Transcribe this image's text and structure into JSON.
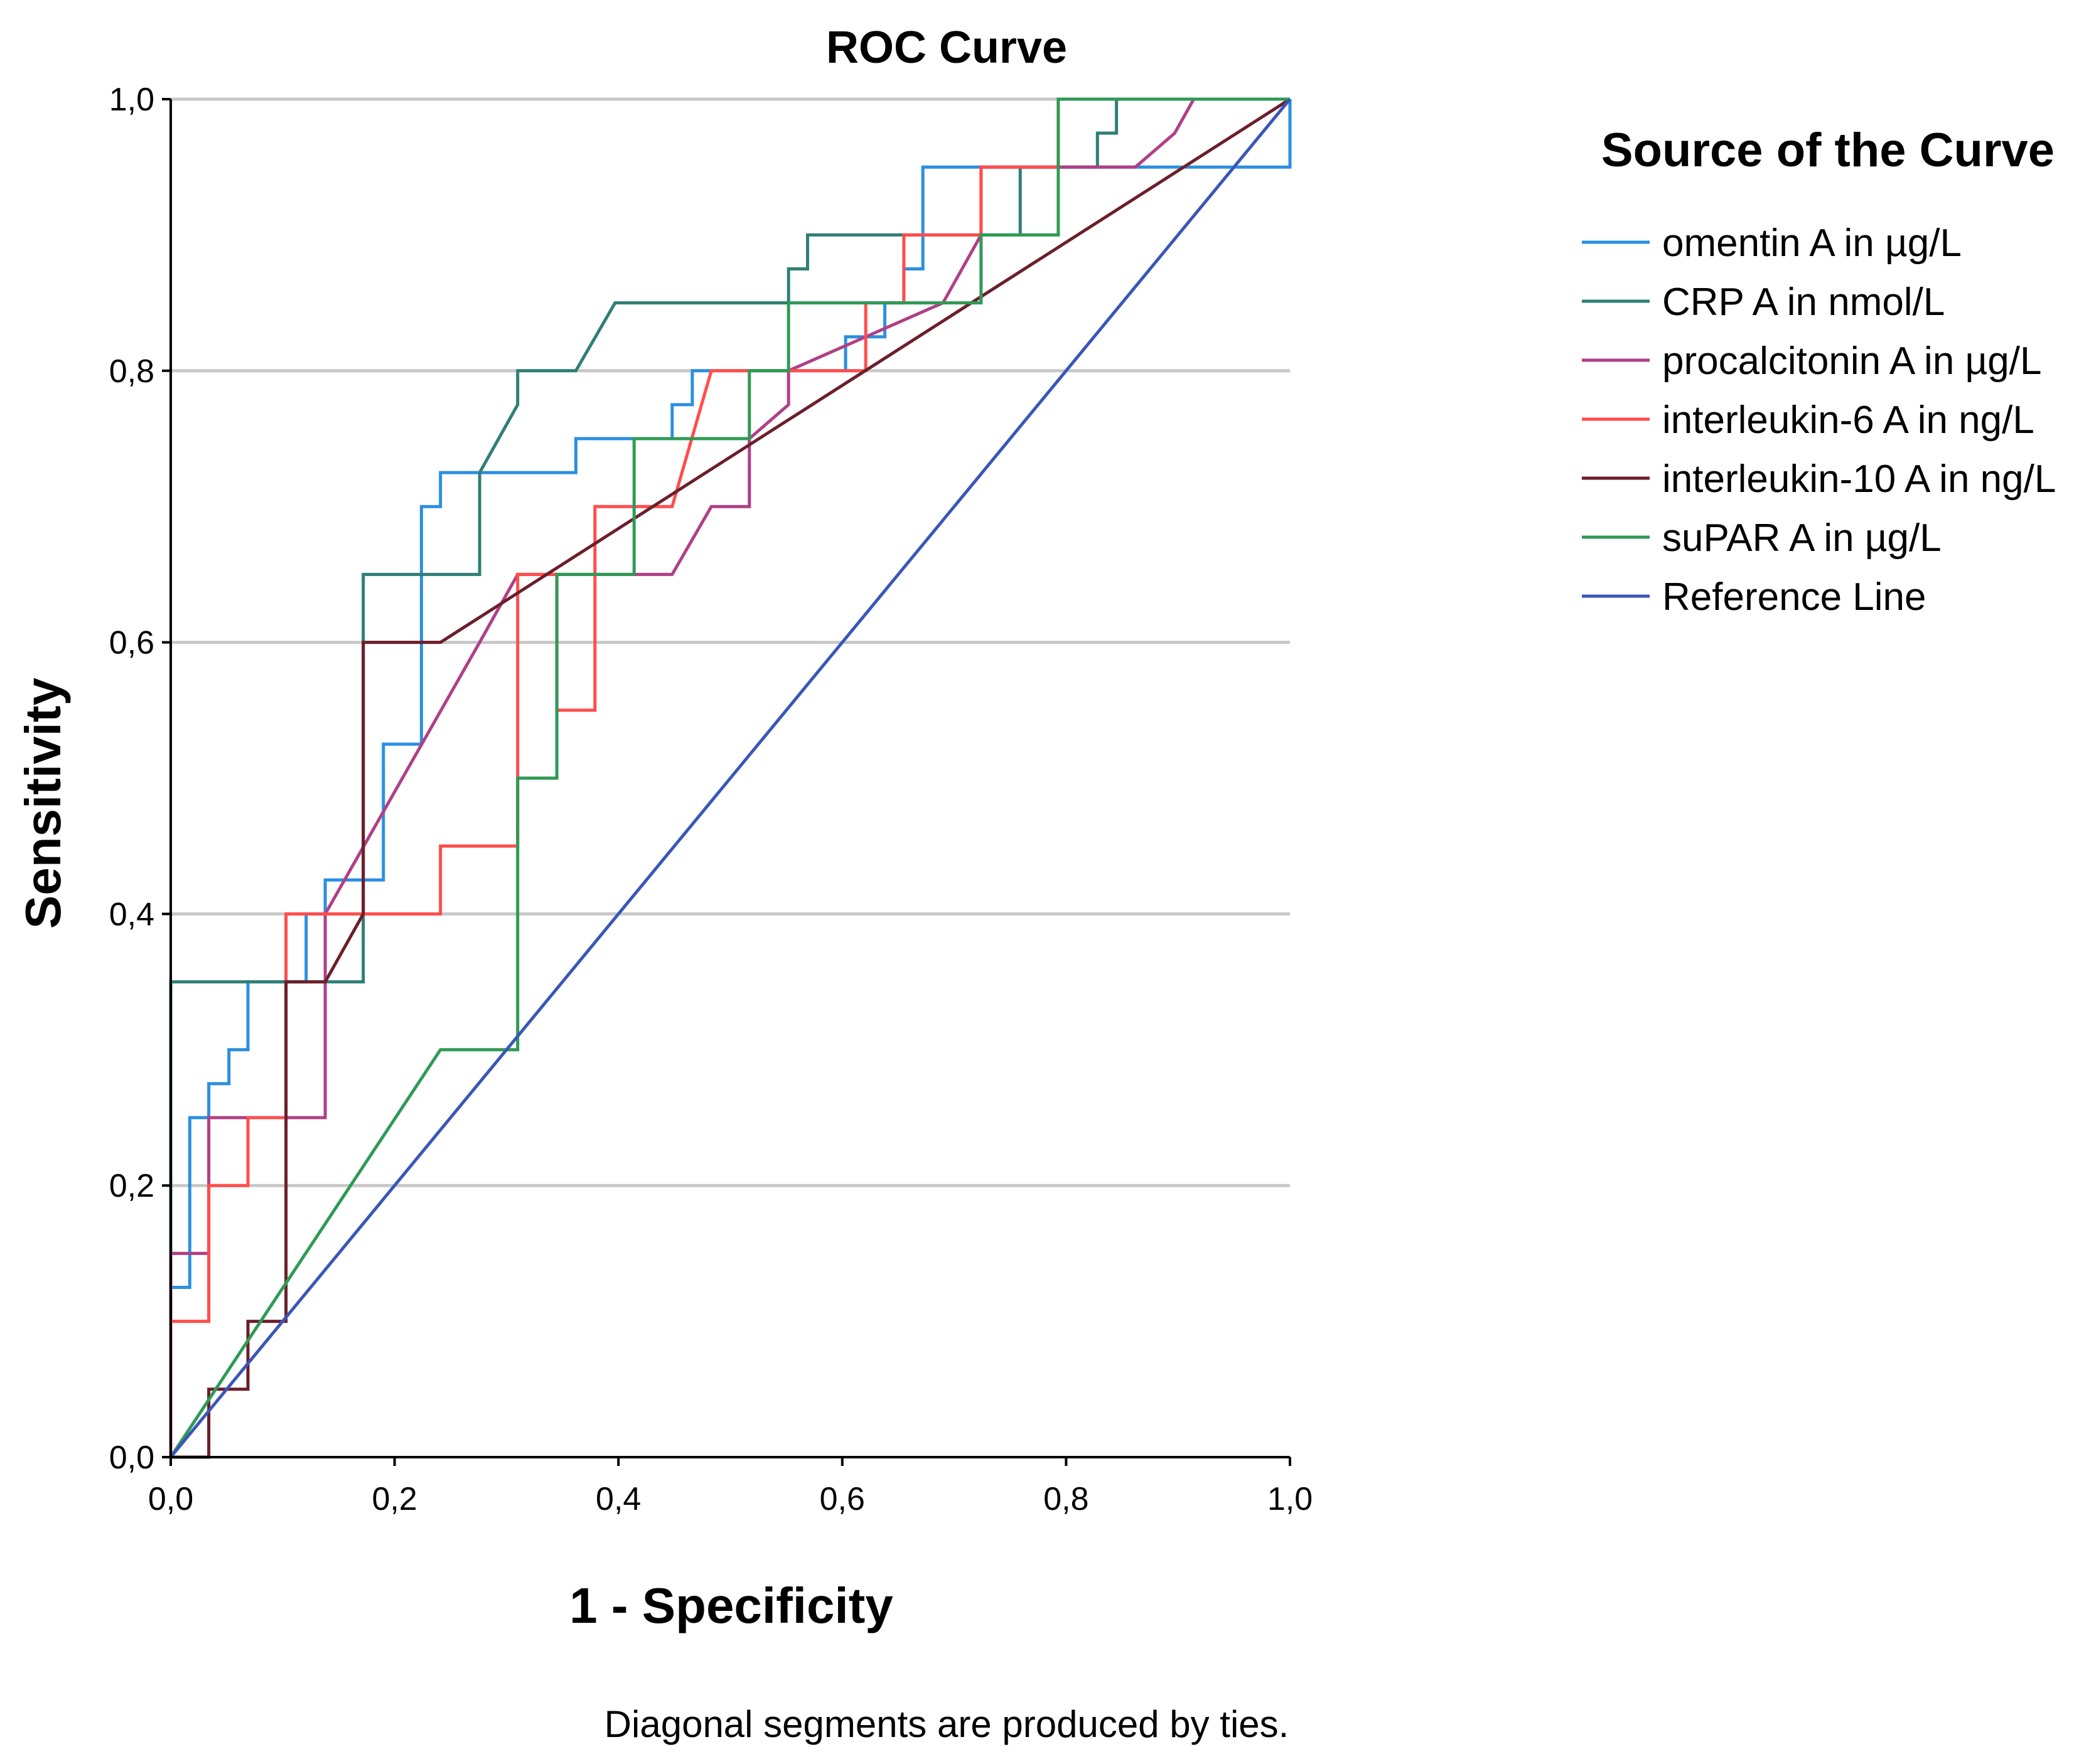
{
  "chart_data": {
    "type": "line",
    "title": "ROC Curve",
    "xlabel": "1 - Specificity",
    "ylabel": "Sensitivity",
    "footnote": "Diagonal segments are produced by ties.",
    "legend_title": "Source of the Curve",
    "legend_position": "right",
    "xlim": [
      0,
      1
    ],
    "ylim": [
      0,
      1
    ],
    "xticks": [
      0,
      0.2,
      0.4,
      0.6,
      0.8,
      1.0
    ],
    "yticks": [
      0,
      0.2,
      0.4,
      0.6,
      0.8,
      1.0
    ],
    "xtick_labels": [
      "0,0",
      "0,2",
      "0,4",
      "0,6",
      "0,8",
      "1,0"
    ],
    "ytick_labels": [
      "0,0",
      "0,2",
      "0,4",
      "0,6",
      "0,8",
      "1,0"
    ],
    "grid": "horizontal",
    "series": [
      {
        "name": "omentin A in µg/L",
        "color": "#2b8fe0",
        "x": [
          0,
          0,
          0.017,
          0.017,
          0.034,
          0.034,
          0.052,
          0.052,
          0.069,
          0.069,
          0.121,
          0.121,
          0.138,
          0.138,
          0.19,
          0.19,
          0.224,
          0.224,
          0.241,
          0.241,
          0.259,
          0.259,
          0.362,
          0.362,
          0.448,
          0.448,
          0.466,
          0.466,
          0.603,
          0.603,
          0.638,
          0.638,
          0.655,
          0.655,
          0.672,
          0.672,
          0.724,
          0.724,
          1.0,
          1.0
        ],
        "y": [
          0,
          0.125,
          0.125,
          0.25,
          0.25,
          0.275,
          0.275,
          0.3,
          0.3,
          0.35,
          0.35,
          0.4,
          0.4,
          0.425,
          0.425,
          0.525,
          0.525,
          0.7,
          0.7,
          0.725,
          0.725,
          0.725,
          0.725,
          0.75,
          0.75,
          0.775,
          0.775,
          0.8,
          0.8,
          0.825,
          0.825,
          0.85,
          0.85,
          0.875,
          0.875,
          0.95,
          0.95,
          0.95,
          0.95,
          1.0
        ]
      },
      {
        "name": "CRP A in nmol/L",
        "color": "#2f7f76",
        "x": [
          0,
          0,
          0.172,
          0.172,
          0.276,
          0.276,
          0.293,
          0.293,
          0.31,
          0.31,
          0.362,
          0.397,
          0.552,
          0.552,
          0.569,
          0.569,
          0.759,
          0.759,
          0.828,
          0.828,
          0.845,
          0.845,
          1.0
        ],
        "y": [
          0,
          0.35,
          0.35,
          0.65,
          0.65,
          0.725,
          0.75,
          0.75,
          0.775,
          0.8,
          0.8,
          0.85,
          0.85,
          0.875,
          0.875,
          0.9,
          0.9,
          0.95,
          0.95,
          0.975,
          0.975,
          1.0,
          1.0
        ]
      },
      {
        "name": "procalcitonin A in µg/L",
        "color": "#b13f86",
        "x": [
          0,
          0,
          0.034,
          0.034,
          0.138,
          0.138,
          0.276,
          0.31,
          0.448,
          0.483,
          0.517,
          0.517,
          0.552,
          0.552,
          0.69,
          0.724,
          0.724,
          0.862,
          0.897,
          0.914,
          1.0
        ],
        "y": [
          0,
          0.15,
          0.15,
          0.25,
          0.25,
          0.4,
          0.6,
          0.65,
          0.65,
          0.7,
          0.7,
          0.75,
          0.775,
          0.8,
          0.85,
          0.9,
          0.95,
          0.95,
          0.975,
          1.0,
          1.0
        ]
      },
      {
        "name": "interleukin-6 A in ng/L",
        "color": "#ff4d4d",
        "x": [
          0,
          0,
          0.034,
          0.034,
          0.069,
          0.069,
          0.103,
          0.103,
          0.241,
          0.241,
          0.31,
          0.31,
          0.345,
          0.345,
          0.379,
          0.379,
          0.414,
          0.448,
          0.483,
          0.517,
          0.621,
          0.621,
          0.655,
          0.655,
          0.724,
          0.724,
          0.793,
          0.793,
          1.0
        ],
        "y": [
          0,
          0.1,
          0.1,
          0.2,
          0.2,
          0.25,
          0.25,
          0.4,
          0.4,
          0.45,
          0.45,
          0.65,
          0.65,
          0.55,
          0.55,
          0.7,
          0.7,
          0.7,
          0.8,
          0.8,
          0.8,
          0.85,
          0.85,
          0.9,
          0.9,
          0.95,
          0.95,
          1.0,
          1.0
        ]
      },
      {
        "name": "interleukin-10 A in ng/L",
        "color": "#6b1f2a",
        "x": [
          0,
          0.034,
          0.034,
          0.069,
          0.069,
          0.103,
          0.103,
          0.138,
          0.172,
          0.172,
          0.241,
          1.0
        ],
        "y": [
          0,
          0,
          0.05,
          0.05,
          0.1,
          0.1,
          0.35,
          0.35,
          0.4,
          0.6,
          0.6,
          1.0
        ]
      },
      {
        "name": "suPAR A in µg/L",
        "color": "#2f9a55",
        "x": [
          0,
          0.241,
          0.31,
          0.31,
          0.345,
          0.345,
          0.414,
          0.414,
          0.517,
          0.517,
          0.552,
          0.552,
          0.724,
          0.724,
          0.793,
          0.793,
          1.0
        ],
        "y": [
          0,
          0.3,
          0.3,
          0.5,
          0.5,
          0.65,
          0.65,
          0.75,
          0.75,
          0.8,
          0.8,
          0.85,
          0.85,
          0.9,
          0.9,
          1.0,
          1.0
        ]
      },
      {
        "name": "Reference Line",
        "color": "#3a56b8",
        "x": [
          0,
          1
        ],
        "y": [
          0,
          1
        ]
      }
    ]
  }
}
